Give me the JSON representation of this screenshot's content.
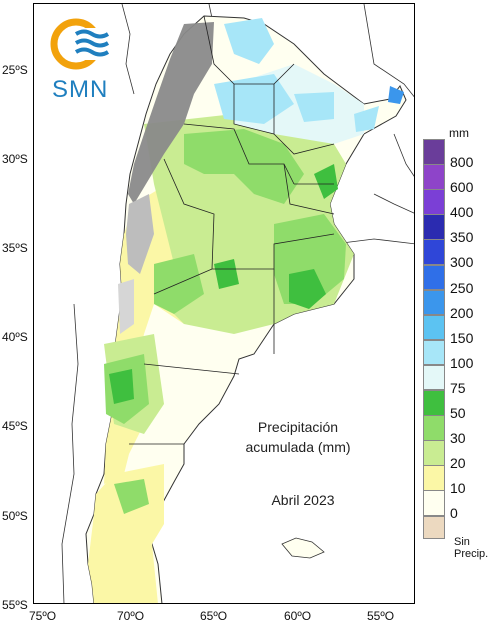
{
  "logo": {
    "text": "SMN"
  },
  "map": {
    "title_line1": "Precipitación",
    "title_line2": "acumulada (mm)",
    "period": "Abril 2023"
  },
  "axes": {
    "lat_labels": [
      "25ºS",
      "30ºS",
      "35ºS",
      "40ºS",
      "45ºS",
      "50ºS",
      "55ºS"
    ],
    "lon_labels": [
      "75ºO",
      "70ºO",
      "65ºO",
      "60ºO",
      "55ºO"
    ]
  },
  "legend": {
    "unit": "mm",
    "classes": [
      {
        "label": "800",
        "color": "#6a3d9a"
      },
      {
        "label": "600",
        "color": "#8e44c9"
      },
      {
        "label": "400",
        "color": "#7b3fd6"
      },
      {
        "label": "350",
        "color": "#2b2bb0"
      },
      {
        "label": "300",
        "color": "#2f46d8"
      },
      {
        "label": "250",
        "color": "#2f6fe8"
      },
      {
        "label": "200",
        "color": "#3b96ec"
      },
      {
        "label": "150",
        "color": "#5cc3f2"
      },
      {
        "label": "100",
        "color": "#a7e6f8"
      },
      {
        "label": "75",
        "color": "#e4f8f8"
      },
      {
        "label": "50",
        "color": "#3fbf3f"
      },
      {
        "label": "30",
        "color": "#8fdc6a"
      },
      {
        "label": "20",
        "color": "#c9ec92"
      },
      {
        "label": "10",
        "color": "#fbf7a6"
      },
      {
        "label": "0",
        "color": "#fffff0"
      }
    ],
    "no_precip_line1": "Sin",
    "no_precip_line2": "Precip.",
    "no_precip_color": "#ecd9c0"
  }
}
